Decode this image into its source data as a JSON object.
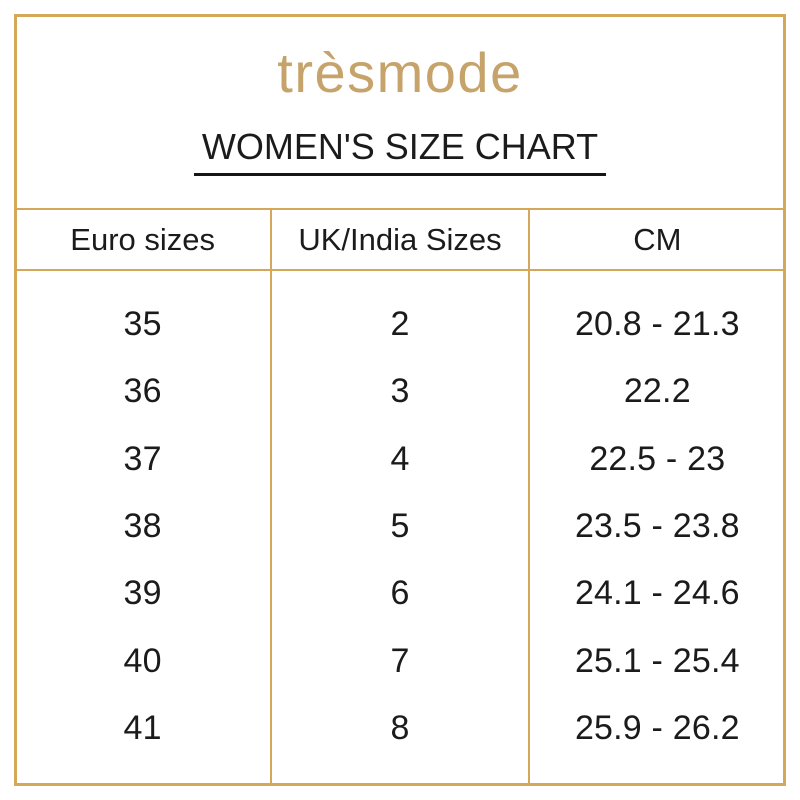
{
  "brand": {
    "logo_text": "trèsmode"
  },
  "page_title": "WOMEN'S SIZE CHART",
  "table": {
    "columns": [
      "Euro sizes",
      "UK/India Sizes",
      "CM"
    ],
    "rows": [
      [
        "35",
        "2",
        "20.8 - 21.3"
      ],
      [
        "36",
        "3",
        "22.2"
      ],
      [
        "37",
        "4",
        "22.5 - 23"
      ],
      [
        "38",
        "5",
        "23.5 - 23.8"
      ],
      [
        "39",
        "6",
        "24.1 - 24.6"
      ],
      [
        "40",
        "7",
        "25.1 - 25.4"
      ],
      [
        "41",
        "8",
        "25.9 - 26.2"
      ]
    ]
  },
  "chart_data": {
    "type": "table",
    "title": "WOMEN'S SIZE CHART",
    "columns": [
      "Euro sizes",
      "UK/India Sizes",
      "CM"
    ],
    "rows": [
      [
        "35",
        "2",
        "20.8 - 21.3"
      ],
      [
        "36",
        "3",
        "22.2"
      ],
      [
        "37",
        "4",
        "22.5 - 23"
      ],
      [
        "38",
        "5",
        "23.5 - 23.8"
      ],
      [
        "39",
        "6",
        "24.1 - 24.6"
      ],
      [
        "40",
        "7",
        "25.1 - 25.4"
      ],
      [
        "41",
        "8",
        "25.9 - 26.2"
      ]
    ]
  },
  "colors": {
    "gold_line": "#d4a85a",
    "logo_gold": "#c6a36a",
    "text": "#1b1b1b",
    "background": "#ffffff"
  }
}
